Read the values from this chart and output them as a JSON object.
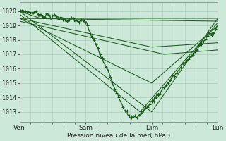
{
  "bg_color": "#cce8d8",
  "grid_color": "#aaccbb",
  "line_color": "#1a5c1a",
  "xlabel": "Pression niveau de la mer( hPa )",
  "xtick_labels": [
    "Ven",
    "Sam",
    "Dim",
    "Lun"
  ],
  "xtick_positions": [
    0,
    96,
    192,
    288
  ],
  "ylim": [
    1012.3,
    1020.6
  ],
  "yticks": [
    1013,
    1014,
    1015,
    1016,
    1017,
    1018,
    1019,
    1020
  ],
  "total_points": 289
}
